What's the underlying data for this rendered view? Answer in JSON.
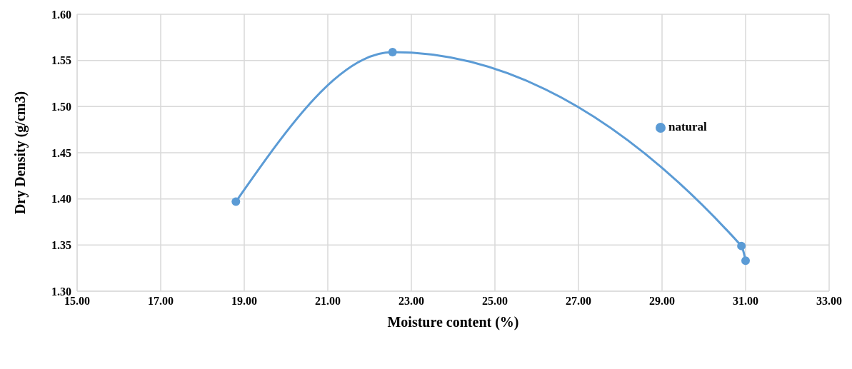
{
  "chart_data": {
    "type": "line",
    "xlabel": "Moisture content (%)",
    "ylabel": "Dry Density (g/cm3)",
    "x": [
      18.8,
      22.55,
      30.9,
      31.0
    ],
    "series": [
      {
        "name": "natural",
        "color": "#5b9bd5",
        "values": [
          1.397,
          1.559,
          1.349,
          1.333
        ]
      }
    ],
    "xlim": [
      15,
      33
    ],
    "xticks": [
      {
        "value": 15,
        "label": "15.00"
      },
      {
        "value": 17,
        "label": "17.00"
      },
      {
        "value": 19,
        "label": "19.00"
      },
      {
        "value": 21,
        "label": "21.00"
      },
      {
        "value": 23,
        "label": "23.00"
      },
      {
        "value": 25,
        "label": "25.00"
      },
      {
        "value": 27,
        "label": "27.00"
      },
      {
        "value": 29,
        "label": "29.00"
      },
      {
        "value": 31,
        "label": "31.00"
      },
      {
        "value": 33,
        "label": "33.00"
      }
    ],
    "ylim": [
      1.3,
      1.6
    ],
    "yticks": [
      {
        "value": 1.3,
        "label": "1.30"
      },
      {
        "value": 1.35,
        "label": "1.35"
      },
      {
        "value": 1.4,
        "label": "1.40"
      },
      {
        "value": 1.45,
        "label": "1.45"
      },
      {
        "value": 1.5,
        "label": "1.50"
      },
      {
        "value": 1.55,
        "label": "1.55"
      },
      {
        "value": 1.6,
        "label": "1.60"
      }
    ],
    "grid": true,
    "legend": "right",
    "marker": "circle",
    "line_style": "solid"
  }
}
